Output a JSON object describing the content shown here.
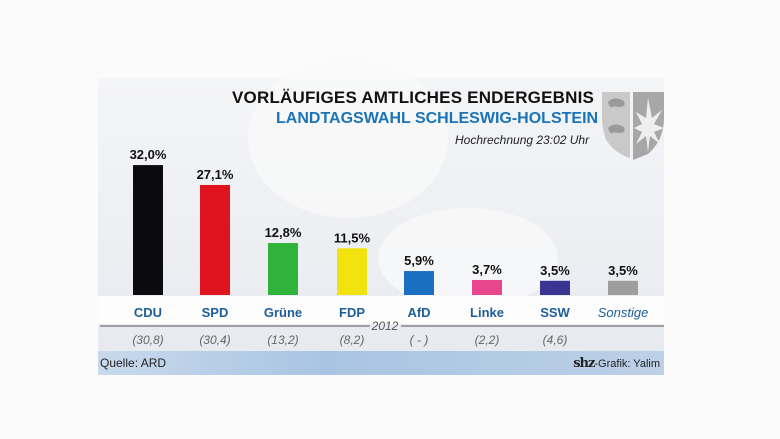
{
  "header": {
    "title": "VORLÄUFIGES AMTLICHES  ENDERGEBNIS",
    "subtitle": "LANDTAGSWAHL SCHLESWIG-HOLSTEIN",
    "note": "Hochrechnung 23:02 Uhr",
    "crest_icon": "coat-of-arms-icon"
  },
  "chart_data": {
    "type": "bar",
    "title": "VORLÄUFIGES AMTLICHES  ENDERGEBNIS",
    "subtitle": "LANDTAGSWAHL SCHLESWIG-HOLSTEIN",
    "xlabel": "",
    "ylabel": "",
    "ylim": [
      0,
      32
    ],
    "categories": [
      "CDU",
      "SPD",
      "Grüne",
      "FDP",
      "AfD",
      "Linke",
      "SSW",
      "Sonstige"
    ],
    "values": [
      32.0,
      27.1,
      12.8,
      11.5,
      5.9,
      3.7,
      3.5,
      3.5
    ],
    "value_labels": [
      "32,0%",
      "27,1%",
      "12,8%",
      "11,5%",
      "5,9%",
      "3,7%",
      "3,5%",
      "3,5%"
    ],
    "colors": [
      "#0b0b0f",
      "#e0141e",
      "#2fb33a",
      "#f2e20e",
      "#1a6fc0",
      "#e8468c",
      "#3a3493",
      "#9e9e9e"
    ],
    "previous_label": "2012",
    "previous_values": [
      "(30,8)",
      "(30,4)",
      "(13,2)",
      "(8,2)",
      "( - )",
      "(2,2)",
      "(4,6)",
      ""
    ],
    "grid": false,
    "legend": "none"
  },
  "footer": {
    "source": "Quelle: ARD",
    "brand": "shz",
    "credit": "-Grafik: Yalim"
  },
  "colors": {
    "accent_blue": "#1b73b8",
    "label_blue": "#1d5e99"
  }
}
